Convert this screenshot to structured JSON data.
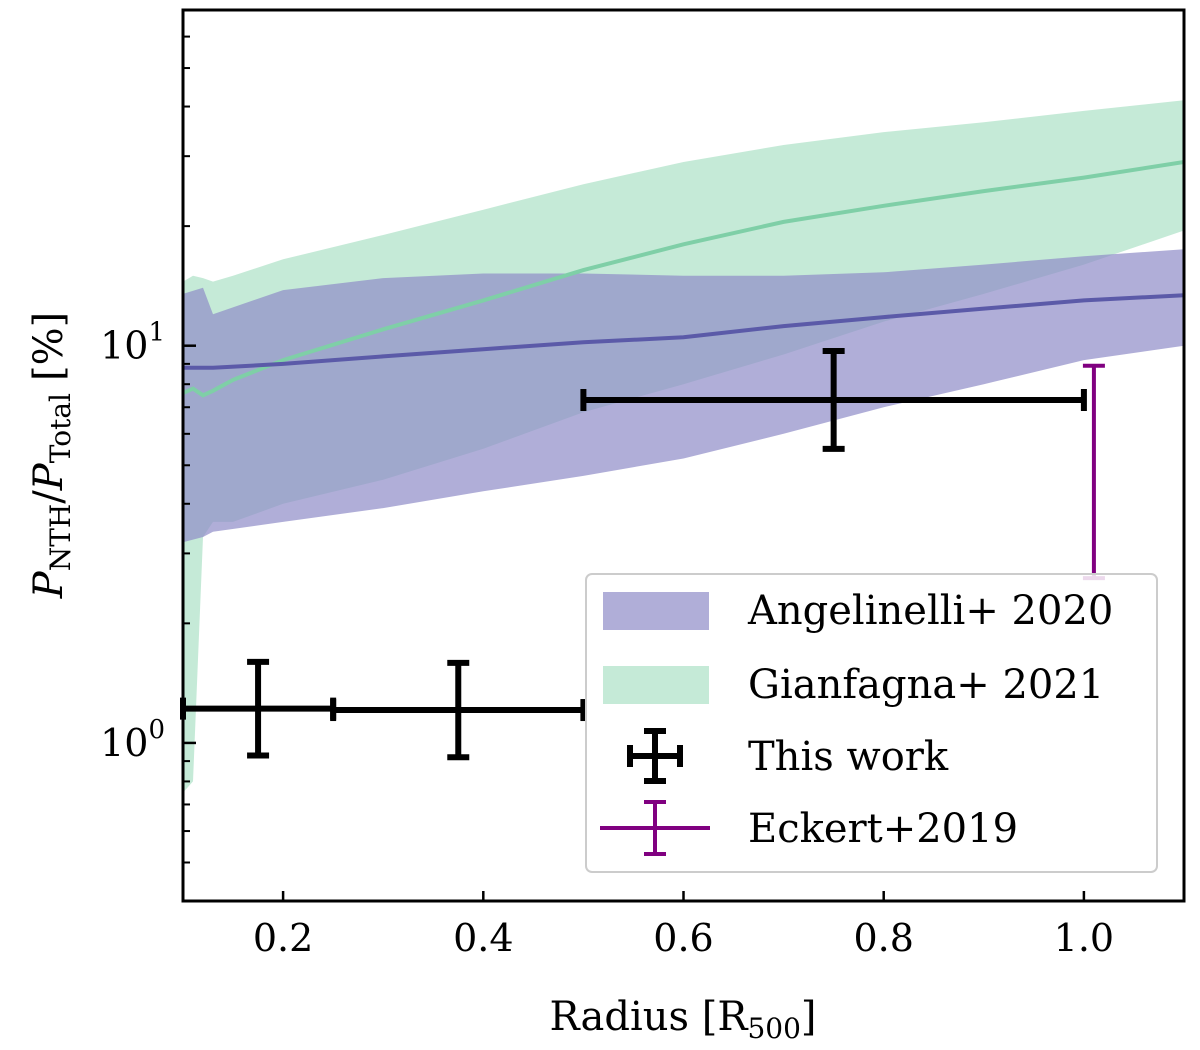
{
  "chart_data": {
    "type": "line",
    "xlabel": "Radius [R",
    "xlabel_sub": "500",
    "xlabel_close": "]",
    "ylabel": {
      "p1": "P",
      "sub1": "NTH",
      "slash": "/",
      "p2": "P",
      "sub2": "Total",
      "unit": "[%]"
    },
    "xlim": [
      0.1,
      1.1
    ],
    "ylim": [
      0.4,
      70
    ],
    "yscale": "log",
    "x_ticks": [
      {
        "value": 0.2,
        "label": "0.2"
      },
      {
        "value": 0.4,
        "label": "0.4"
      },
      {
        "value": 0.6,
        "label": "0.6"
      },
      {
        "value": 0.8,
        "label": "0.8"
      },
      {
        "value": 1.0,
        "label": "1.0"
      }
    ],
    "y_ticks": [
      {
        "value": 1,
        "base": "10",
        "exp": "0"
      },
      {
        "value": 10,
        "base": "10",
        "exp": "1"
      }
    ],
    "bands": [
      {
        "name": "Angelinelli+ 2020",
        "color": "#8f8cc8",
        "line_color": "#5b5aa8",
        "opacity": 0.7,
        "x": [
          0.1,
          0.12,
          0.13,
          0.2,
          0.3,
          0.4,
          0.5,
          0.6,
          0.7,
          0.8,
          0.9,
          1.0,
          1.1
        ],
        "center": [
          8.8,
          8.8,
          8.8,
          9.0,
          9.4,
          9.8,
          10.2,
          10.5,
          11.2,
          11.8,
          12.4,
          13.0,
          13.4
        ],
        "lower": [
          3.2,
          3.3,
          3.4,
          3.6,
          3.9,
          4.3,
          4.7,
          5.2,
          6.0,
          7.0,
          8.0,
          9.2,
          10.0
        ],
        "upper": [
          13.5,
          14.0,
          12.0,
          13.8,
          14.8,
          15.2,
          15.2,
          15.0,
          15.0,
          15.3,
          16.0,
          16.8,
          17.5
        ]
      },
      {
        "name": "Gianfagna+ 2021",
        "color": "#9fdcbd",
        "line_color": "#7fcfa7",
        "opacity": 0.6,
        "x": [
          0.1,
          0.11,
          0.12,
          0.13,
          0.15,
          0.2,
          0.3,
          0.4,
          0.5,
          0.6,
          0.7,
          0.8,
          0.9,
          1.0,
          1.1
        ],
        "center": [
          7.6,
          7.8,
          7.5,
          7.7,
          8.2,
          9.2,
          11.0,
          13.0,
          15.5,
          18.0,
          20.5,
          22.5,
          24.5,
          26.5,
          29.0
        ],
        "lower": [
          0.75,
          0.8,
          3.3,
          3.6,
          3.6,
          4.0,
          4.6,
          5.5,
          6.8,
          8.0,
          9.5,
          11.5,
          13.5,
          16.0,
          19.5
        ],
        "upper": [
          14.5,
          15.0,
          14.8,
          14.5,
          15.0,
          16.5,
          19.0,
          22.0,
          25.5,
          29.0,
          32.0,
          34.5,
          36.5,
          39.0,
          41.5
        ]
      }
    ],
    "error_points": [
      {
        "name": "This work",
        "color": "#000000",
        "points": [
          {
            "x": 0.175,
            "y": 1.22,
            "xerr": [
              0.075,
              0.075
            ],
            "yerr": [
              0.29,
              0.38
            ]
          },
          {
            "x": 0.375,
            "y": 1.21,
            "xerr": [
              0.125,
              0.125
            ],
            "yerr": [
              0.29,
              0.38
            ]
          },
          {
            "x": 0.75,
            "y": 7.3,
            "xerr": [
              0.25,
              0.25
            ],
            "yerr": [
              1.8,
              2.4
            ]
          }
        ]
      },
      {
        "name": "Eckert+2019",
        "color": "#800080",
        "points": [
          {
            "x": 1.01,
            "y": 5.6,
            "xerr": [
              0,
              0
            ],
            "yerr": [
              3.0,
              3.3
            ]
          }
        ]
      }
    ],
    "legend": {
      "position": "lower-right",
      "entries": [
        {
          "label": "Angelinelli+ 2020",
          "kind": "band"
        },
        {
          "label": "Gianfagna+ 2021",
          "kind": "band"
        },
        {
          "label": "This work",
          "kind": "errorbar"
        },
        {
          "label": "Eckert+2019",
          "kind": "errorbar"
        }
      ]
    }
  }
}
